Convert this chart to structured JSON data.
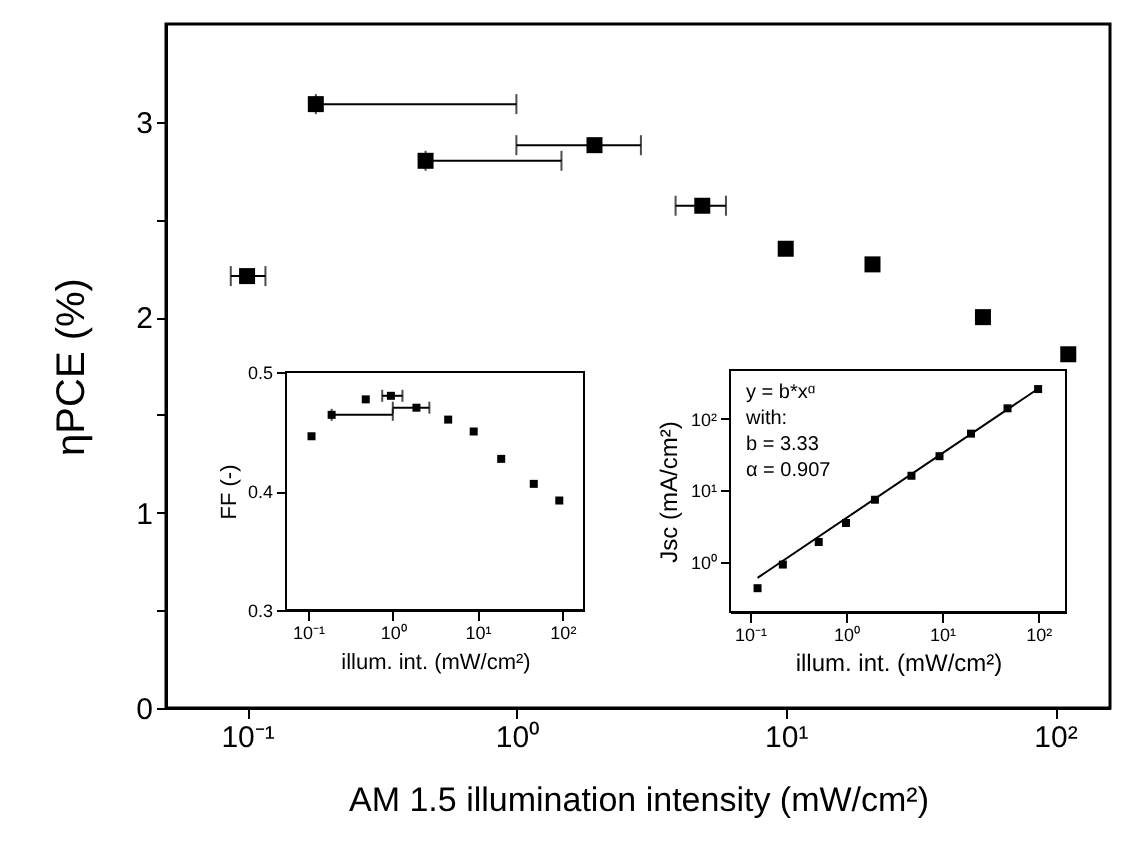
{
  "chart_data": [
    {
      "type": "scatter",
      "xlabel": "AM 1.5 illumination intensity (mW/cm²)",
      "ylabel": "ηPCE (%)",
      "log": "x",
      "marker": "square",
      "grid": false,
      "xlim": [
        0.05,
        160
      ],
      "xticks": [
        {
          "value": 0.1,
          "label": "10⁻¹"
        },
        {
          "value": 1,
          "label": "10⁰"
        },
        {
          "value": 10,
          "label": "10¹"
        },
        {
          "value": 100,
          "label": "10²"
        }
      ],
      "ylim": [
        0,
        3.5
      ],
      "yticks": [
        0,
        {
          "value": 0.5,
          "label": null
        },
        1,
        {
          "value": 1.5,
          "label": null
        },
        2,
        {
          "value": 2.5,
          "label": null
        },
        3
      ],
      "x": [
        0.1,
        0.18,
        0.46,
        1.95,
        4.9,
        10,
        21,
        54,
        112
      ],
      "series": [
        {
          "color": "#000000",
          "values": [
            2.21,
            3.09,
            2.8,
            2.88,
            2.57,
            2.35,
            2.27,
            2.0,
            1.81
          ],
          "xerrors": [
            [
              0.087,
              0.117
            ],
            [
              0.18,
              1.0
            ],
            [
              0.46,
              1.47
            ],
            [
              1.0,
              2.9
            ],
            [
              3.9,
              6.0
            ],
            null,
            null,
            null,
            null
          ]
        }
      ]
    },
    {
      "type": "scatter",
      "xlabel": "illum. int. (mW/cm²)",
      "ylabel": "FF (-)",
      "log": "x",
      "marker": "square",
      "grid": false,
      "xlim": [
        0.055,
        180
      ],
      "xticks": [
        {
          "value": 0.1,
          "label": "10⁻¹"
        },
        {
          "value": 1,
          "label": "10⁰"
        },
        {
          "value": 10,
          "label": "10¹"
        },
        {
          "value": 100,
          "label": "10²"
        }
      ],
      "ylim": [
        0.3,
        0.5
      ],
      "yticks": [
        0.3,
        0.4,
        0.5
      ],
      "x": [
        0.11,
        0.19,
        0.48,
        0.95,
        1.9,
        4.5,
        9,
        19,
        46,
        92
      ],
      "series": [
        {
          "color": "#000000",
          "values": [
            0.446,
            0.464,
            0.477,
            0.48,
            0.47,
            0.46,
            0.45,
            0.427,
            0.406,
            0.392
          ],
          "xerrors": [
            null,
            [
              0.19,
              1.0
            ],
            null,
            [
              0.75,
              1.3
            ],
            [
              1.0,
              2.7
            ],
            null,
            null,
            null,
            null,
            null
          ]
        }
      ]
    },
    {
      "type": "scatter",
      "xlabel": "illum. int. (mW/cm²)",
      "ylabel": "Jsc (mA/cm²)",
      "log": "xy",
      "marker": "square",
      "grid": false,
      "xlim": [
        0.062,
        195
      ],
      "xticks": [
        {
          "value": 0.1,
          "label": "10⁻¹"
        },
        {
          "value": 1,
          "label": "10⁰"
        },
        {
          "value": 10,
          "label": "10¹"
        },
        {
          "value": 100,
          "label": "10²"
        }
      ],
      "ylim": [
        0.2,
        480
      ],
      "yticks": [
        {
          "value": 1,
          "label": "10⁰"
        },
        {
          "value": 10,
          "label": "10¹"
        },
        {
          "value": 100,
          "label": "10²"
        }
      ],
      "x": [
        0.12,
        0.22,
        0.52,
        1.0,
        2.0,
        4.8,
        9.4,
        20,
        48,
        100
      ],
      "series": [
        {
          "color": "#000000",
          "values": [
            0.43,
            0.92,
            1.9,
            3.5,
            7.4,
            16,
            30,
            62,
            140,
            260
          ]
        },
        {
          "type": "line",
          "color": "#000000",
          "marker": "none",
          "line_style": "solid",
          "x": [
            0.12,
            100
          ],
          "values": [
            0.6,
            263
          ]
        }
      ],
      "annotations": [
        "y = b*xᵅ",
        "with:",
        "b = 3.33",
        "α = 0.907"
      ]
    }
  ]
}
